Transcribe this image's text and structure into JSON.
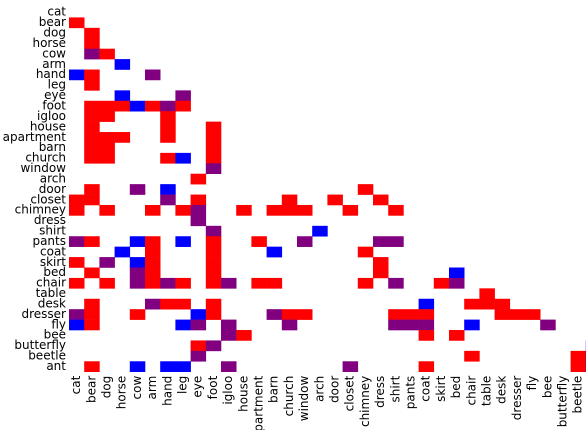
{
  "chart_data": {
    "type": "heatmap",
    "title": "",
    "xlabel": "",
    "ylabel": "",
    "categories": [
      "cat",
      "bear",
      "dog",
      "horse",
      "cow",
      "arm",
      "hand",
      "leg",
      "eye",
      "foot",
      "igloo",
      "house",
      "apartment",
      "barn",
      "church",
      "window",
      "arch",
      "door",
      "closet",
      "chimney",
      "dress",
      "shirt",
      "pants",
      "coat",
      "skirt",
      "bed",
      "chair",
      "table",
      "desk",
      "dresser",
      "fly",
      "bee",
      "butterfly",
      "beetle",
      "ant"
    ],
    "legend": [
      {
        "code": "R",
        "color": "#ff0000"
      },
      {
        "code": "B",
        "color": "#0000ff"
      },
      {
        "code": "P",
        "color": "#800080"
      }
    ],
    "grid": false,
    "rows": [
      {
        "label": "cat",
        "cells": ""
      },
      {
        "label": "bear",
        "cells": "R"
      },
      {
        "label": "dog",
        "cells": ".R"
      },
      {
        "label": "horse",
        "cells": ".R"
      },
      {
        "label": "cow",
        "cells": ".PR"
      },
      {
        "label": "arm",
        "cells": "...B"
      },
      {
        "label": "hand",
        "cells": "BR...P"
      },
      {
        "label": "leg",
        "cells": ".R"
      },
      {
        "label": "eye",
        "cells": "...B...P"
      },
      {
        "label": "foot",
        "cells": ".RRRBRPR"
      },
      {
        "label": "igloo",
        "cells": ".RR...R"
      },
      {
        "label": "house",
        "cells": ".R....R..R"
      },
      {
        "label": "apartment",
        "cells": ".RRR..R..R"
      },
      {
        "label": "barn",
        "cells": ".RR......R"
      },
      {
        "label": "church",
        "cells": ".RR...RB.R"
      },
      {
        "label": "window",
        "cells": ".........P"
      },
      {
        "label": "arch",
        "cells": "........R"
      },
      {
        "label": "door",
        "cells": ".R..P.B............R"
      },
      {
        "label": "closet",
        "cells": "RR....P.R.....R..R..R"
      },
      {
        "label": "chimney",
        "cells": "R.R..R.RP..R.RRR..R..R"
      },
      {
        "label": "dress",
        "cells": "........P"
      },
      {
        "label": "shirt",
        "cells": ".........P......B"
      },
      {
        "label": "pants",
        "cells": "PR..BR.B.R..R..P....PP"
      },
      {
        "label": "coat",
        "cells": "...B.R...R...B.....R"
      },
      {
        "label": "skirt",
        "cells": "R.P.BR...R..........R"
      },
      {
        "label": "bed",
        "cells": ".R..PR...R..........R....B"
      },
      {
        "label": "chair",
        "cells": "R.R.PRPR.RP.RR.....R.P..RP"
      },
      {
        "label": "table",
        "cells": "...........................R"
      },
      {
        "label": "desk",
        "cells": ".R...PRR.R.............B..RRR"
      },
      {
        "label": "dresser",
        "cells": "PR..R...BR...PRR.....RRR....RRR"
      },
      {
        "label": "fly",
        "cells": "BR.....BP.P...P......PPP..B....P"
      },
      {
        "label": "bee",
        "cells": "..........PR...........R.R"
      },
      {
        "label": "butterfly",
        "cells": "........RP........................B"
      },
      {
        "label": "beetle",
        "cells": "........P.................R......RB"
      },
      {
        "label": "ant",
        "cells": ".R..B.BB..P.......P....R.........RB"
      }
    ]
  }
}
